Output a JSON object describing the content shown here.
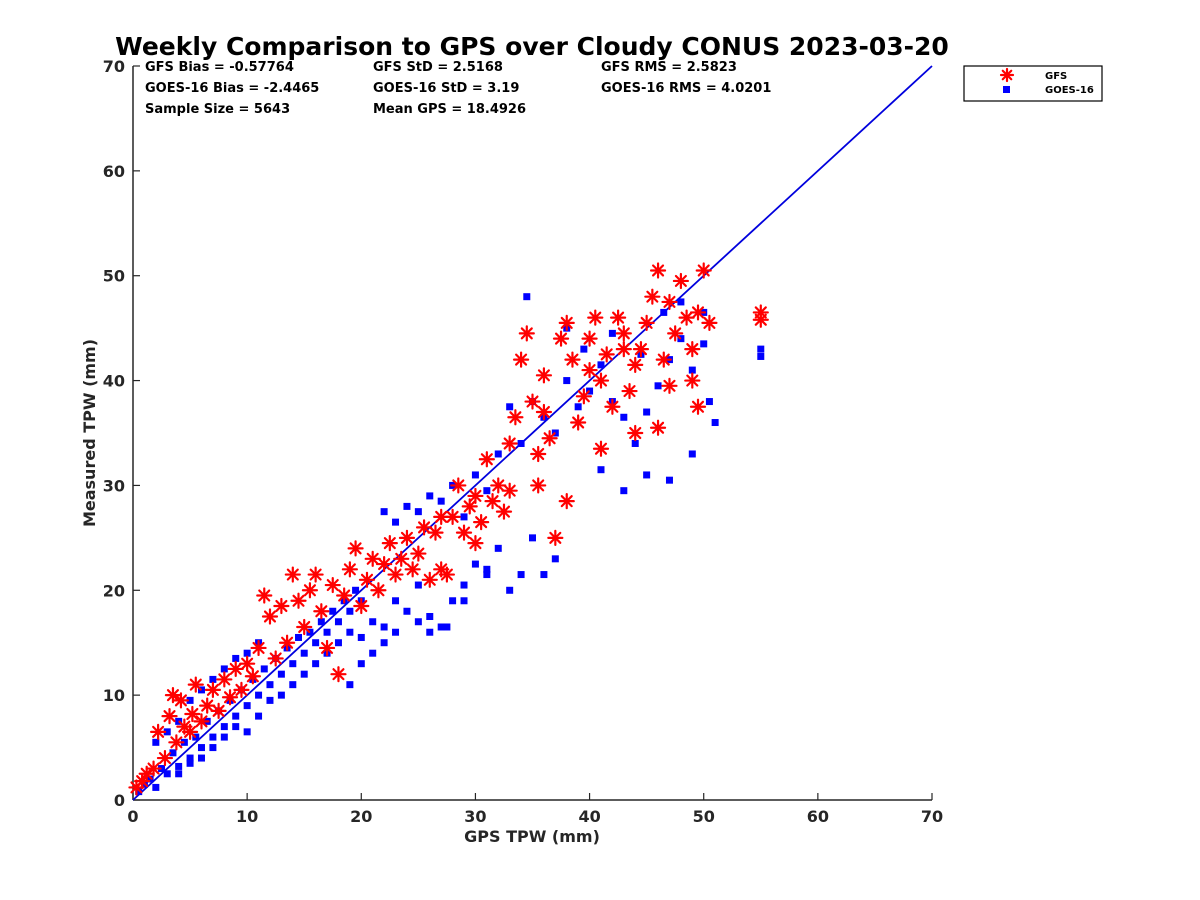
{
  "chart_data": {
    "type": "scatter",
    "title": "Weekly Comparison to GPS over Cloudy CONUS 2023-03-20",
    "xlabel": "GPS TPW (mm)",
    "ylabel": "Measured TPW (mm)",
    "xlim": [
      0,
      70
    ],
    "ylim": [
      0,
      70
    ],
    "xticks": [
      "0",
      "10",
      "20",
      "30",
      "40",
      "50",
      "60",
      "70"
    ],
    "yticks": [
      "0",
      "10",
      "20",
      "30",
      "40",
      "50",
      "60",
      "70"
    ],
    "grid": false,
    "legend_position": "outside-top-right",
    "stats": [
      [
        "GFS Bias = -0.57764",
        "GFS StD = 2.5168",
        "GFS RMS = 2.5823"
      ],
      [
        "GOES-16 Bias = -2.4465",
        "GOES-16 StD = 3.19",
        "GOES-16 RMS = 4.0201"
      ],
      [
        "Sample Size = 5643",
        "Mean GPS = 18.4926",
        ""
      ]
    ],
    "reference_line": {
      "x": [
        0,
        70
      ],
      "y": [
        0,
        70
      ],
      "color": "#0000dd"
    },
    "series": [
      {
        "name": "GFS",
        "marker": "asterisk",
        "color": "#ff0000",
        "points": [
          [
            0.3,
            1.2
          ],
          [
            0.8,
            1.8
          ],
          [
            1.2,
            2.5
          ],
          [
            1.8,
            3.0
          ],
          [
            2.2,
            6.5
          ],
          [
            2.8,
            4.0
          ],
          [
            3.2,
            8.0
          ],
          [
            3.5,
            10.0
          ],
          [
            3.8,
            5.5
          ],
          [
            4.2,
            9.5
          ],
          [
            4.5,
            7.0
          ],
          [
            5.0,
            6.5
          ],
          [
            5.2,
            8.2
          ],
          [
            5.5,
            11.0
          ],
          [
            6.0,
            7.5
          ],
          [
            6.5,
            9.0
          ],
          [
            7.0,
            10.5
          ],
          [
            7.5,
            8.5
          ],
          [
            8.0,
            11.5
          ],
          [
            8.5,
            9.8
          ],
          [
            9.0,
            12.5
          ],
          [
            9.5,
            10.5
          ],
          [
            10.0,
            13.0
          ],
          [
            10.5,
            11.8
          ],
          [
            11.0,
            14.5
          ],
          [
            11.5,
            19.5
          ],
          [
            12.0,
            17.5
          ],
          [
            12.5,
            13.5
          ],
          [
            13.0,
            18.5
          ],
          [
            13.5,
            15.0
          ],
          [
            14.0,
            21.5
          ],
          [
            14.5,
            19.0
          ],
          [
            15.0,
            16.5
          ],
          [
            15.5,
            20.0
          ],
          [
            16.0,
            21.5
          ],
          [
            16.5,
            18.0
          ],
          [
            17.0,
            14.5
          ],
          [
            17.5,
            20.5
          ],
          [
            18.0,
            12.0
          ],
          [
            18.5,
            19.5
          ],
          [
            19.0,
            22.0
          ],
          [
            19.5,
            24.0
          ],
          [
            20.0,
            18.5
          ],
          [
            20.5,
            21.0
          ],
          [
            21.0,
            23.0
          ],
          [
            21.5,
            20.0
          ],
          [
            22.0,
            22.5
          ],
          [
            22.5,
            24.5
          ],
          [
            23.0,
            21.5
          ],
          [
            23.5,
            23.0
          ],
          [
            24.0,
            25.0
          ],
          [
            24.5,
            22.0
          ],
          [
            25.0,
            23.5
          ],
          [
            25.5,
            26.0
          ],
          [
            26.0,
            21.0
          ],
          [
            26.5,
            25.5
          ],
          [
            27.0,
            22.0
          ],
          [
            27.5,
            21.5
          ],
          [
            28.0,
            27.0
          ],
          [
            28.5,
            30.0
          ],
          [
            29.0,
            25.5
          ],
          [
            29.5,
            28.0
          ],
          [
            30.0,
            29.0
          ],
          [
            30.5,
            26.5
          ],
          [
            31.0,
            32.5
          ],
          [
            31.5,
            28.5
          ],
          [
            32.0,
            30.0
          ],
          [
            32.5,
            27.5
          ],
          [
            33.0,
            29.5
          ],
          [
            33.5,
            36.5
          ],
          [
            34.0,
            42.0
          ],
          [
            34.5,
            44.5
          ],
          [
            35.0,
            38.0
          ],
          [
            35.5,
            30.0
          ],
          [
            36.0,
            40.5
          ],
          [
            36.5,
            34.5
          ],
          [
            37.0,
            25.0
          ],
          [
            37.5,
            44.0
          ],
          [
            38.0,
            45.5
          ],
          [
            38.5,
            42.0
          ],
          [
            39.0,
            36.0
          ],
          [
            39.5,
            38.5
          ],
          [
            40.0,
            44.0
          ],
          [
            40.5,
            46.0
          ],
          [
            41.0,
            40.0
          ],
          [
            41.5,
            42.5
          ],
          [
            42.0,
            37.5
          ],
          [
            42.5,
            46.0
          ],
          [
            43.0,
            44.5
          ],
          [
            43.5,
            39.0
          ],
          [
            44.0,
            41.5
          ],
          [
            44.5,
            43.0
          ],
          [
            45.0,
            45.5
          ],
          [
            45.5,
            48.0
          ],
          [
            46.0,
            50.5
          ],
          [
            46.5,
            42.0
          ],
          [
            47.0,
            39.5
          ],
          [
            47.5,
            44.5
          ],
          [
            48.0,
            49.5
          ],
          [
            48.5,
            46.0
          ],
          [
            49.0,
            43.0
          ],
          [
            49.5,
            37.5
          ],
          [
            50.0,
            50.5
          ],
          [
            50.5,
            45.5
          ],
          [
            49.0,
            40.0
          ],
          [
            46.0,
            35.5
          ],
          [
            44.0,
            35.0
          ],
          [
            38.0,
            28.5
          ],
          [
            35.5,
            33.0
          ],
          [
            41.0,
            33.5
          ],
          [
            55.0,
            46.5
          ],
          [
            55.0,
            45.8
          ],
          [
            30.0,
            24.5
          ],
          [
            27.0,
            27.0
          ],
          [
            33.0,
            34.0
          ],
          [
            36.0,
            37.0
          ],
          [
            40.0,
            41.0
          ],
          [
            43.0,
            43.0
          ],
          [
            47.0,
            47.5
          ],
          [
            49.5,
            46.5
          ]
        ]
      },
      {
        "name": "GOES-16",
        "marker": "square",
        "color": "#0000ff",
        "points": [
          [
            0.5,
            0.8
          ],
          [
            1.0,
            1.5
          ],
          [
            1.5,
            2.0
          ],
          [
            2.0,
            1.2
          ],
          [
            2.5,
            3.0
          ],
          [
            3.0,
            2.5
          ],
          [
            3.5,
            4.5
          ],
          [
            4.0,
            3.2
          ],
          [
            4.5,
            5.5
          ],
          [
            5.0,
            4.0
          ],
          [
            5.5,
            6.0
          ],
          [
            6.0,
            5.0
          ],
          [
            6.5,
            7.5
          ],
          [
            7.0,
            6.0
          ],
          [
            7.5,
            8.5
          ],
          [
            8.0,
            7.0
          ],
          [
            8.5,
            9.5
          ],
          [
            9.0,
            8.0
          ],
          [
            9.5,
            10.5
          ],
          [
            10.0,
            9.0
          ],
          [
            10.5,
            11.5
          ],
          [
            11.0,
            10.0
          ],
          [
            11.5,
            12.5
          ],
          [
            12.0,
            11.0
          ],
          [
            12.5,
            13.5
          ],
          [
            13.0,
            12.0
          ],
          [
            13.5,
            14.5
          ],
          [
            14.0,
            13.0
          ],
          [
            14.5,
            15.5
          ],
          [
            15.0,
            14.0
          ],
          [
            15.5,
            16.0
          ],
          [
            16.0,
            15.0
          ],
          [
            16.5,
            17.0
          ],
          [
            17.0,
            16.0
          ],
          [
            17.5,
            18.0
          ],
          [
            18.0,
            17.0
          ],
          [
            18.5,
            19.0
          ],
          [
            19.0,
            18.0
          ],
          [
            19.5,
            20.0
          ],
          [
            20.0,
            19.0
          ],
          [
            2.0,
            5.5
          ],
          [
            3.0,
            6.5
          ],
          [
            4.0,
            7.5
          ],
          [
            5.0,
            9.5
          ],
          [
            6.0,
            10.5
          ],
          [
            7.0,
            11.5
          ],
          [
            8.0,
            12.5
          ],
          [
            9.0,
            13.5
          ],
          [
            10.0,
            14.0
          ],
          [
            11.0,
            15.0
          ],
          [
            4.0,
            2.5
          ],
          [
            5.0,
            3.5
          ],
          [
            6.0,
            4.0
          ],
          [
            7.0,
            5.0
          ],
          [
            8.0,
            6.0
          ],
          [
            9.0,
            7.0
          ],
          [
            10.0,
            6.5
          ],
          [
            11.0,
            8.0
          ],
          [
            12.0,
            9.5
          ],
          [
            13.0,
            10.0
          ],
          [
            14.0,
            11.0
          ],
          [
            15.0,
            12.0
          ],
          [
            16.0,
            13.0
          ],
          [
            17.0,
            14.0
          ],
          [
            18.0,
            15.0
          ],
          [
            19.0,
            16.0
          ],
          [
            20.0,
            15.5
          ],
          [
            21.0,
            17.0
          ],
          [
            22.0,
            16.5
          ],
          [
            23.0,
            19.0
          ],
          [
            24.0,
            18.0
          ],
          [
            25.0,
            20.5
          ],
          [
            26.0,
            17.5
          ],
          [
            27.0,
            16.5
          ],
          [
            28.0,
            19.0
          ],
          [
            29.0,
            20.5
          ],
          [
            30.0,
            22.5
          ],
          [
            31.0,
            22.0
          ],
          [
            32.0,
            24.0
          ],
          [
            33.0,
            20.0
          ],
          [
            34.0,
            21.5
          ],
          [
            35.0,
            25.0
          ],
          [
            36.0,
            21.5
          ],
          [
            37.0,
            23.0
          ],
          [
            22.0,
            27.5
          ],
          [
            23.0,
            26.5
          ],
          [
            24.0,
            28.0
          ],
          [
            25.0,
            27.5
          ],
          [
            26.0,
            29.0
          ],
          [
            27.0,
            28.5
          ],
          [
            28.0,
            30.0
          ],
          [
            29.0,
            27.0
          ],
          [
            30.0,
            31.0
          ],
          [
            31.0,
            29.5
          ],
          [
            32.0,
            33.0
          ],
          [
            33.0,
            37.5
          ],
          [
            34.0,
            34.0
          ],
          [
            35.0,
            38.0
          ],
          [
            36.0,
            36.5
          ],
          [
            37.0,
            35.0
          ],
          [
            38.0,
            40.0
          ],
          [
            39.0,
            37.5
          ],
          [
            40.0,
            39.0
          ],
          [
            41.0,
            41.5
          ],
          [
            42.0,
            38.0
          ],
          [
            43.0,
            36.5
          ],
          [
            44.0,
            34.0
          ],
          [
            45.0,
            37.0
          ],
          [
            46.0,
            39.5
          ],
          [
            47.0,
            42.0
          ],
          [
            48.0,
            44.0
          ],
          [
            49.0,
            41.0
          ],
          [
            50.0,
            43.5
          ],
          [
            50.5,
            38.0
          ],
          [
            51.0,
            36.0
          ],
          [
            49.0,
            33.0
          ],
          [
            47.0,
            30.5
          ],
          [
            45.0,
            31.0
          ],
          [
            43.0,
            29.5
          ],
          [
            41.0,
            31.5
          ],
          [
            34.5,
            48.0
          ],
          [
            38.0,
            45.0
          ],
          [
            39.5,
            43.0
          ],
          [
            42.0,
            44.5
          ],
          [
            44.5,
            42.5
          ],
          [
            46.5,
            46.5
          ],
          [
            48.0,
            47.5
          ],
          [
            50.0,
            46.5
          ],
          [
            55.0,
            43.0
          ],
          [
            55.0,
            42.3
          ],
          [
            19.0,
            11.0
          ],
          [
            20.0,
            13.0
          ],
          [
            21.0,
            14.0
          ],
          [
            22.0,
            15.0
          ],
          [
            23.0,
            16.0
          ],
          [
            25.0,
            17.0
          ],
          [
            26.0,
            16.0
          ],
          [
            27.5,
            16.5
          ],
          [
            29.0,
            19.0
          ],
          [
            31.0,
            21.5
          ]
        ]
      }
    ]
  }
}
